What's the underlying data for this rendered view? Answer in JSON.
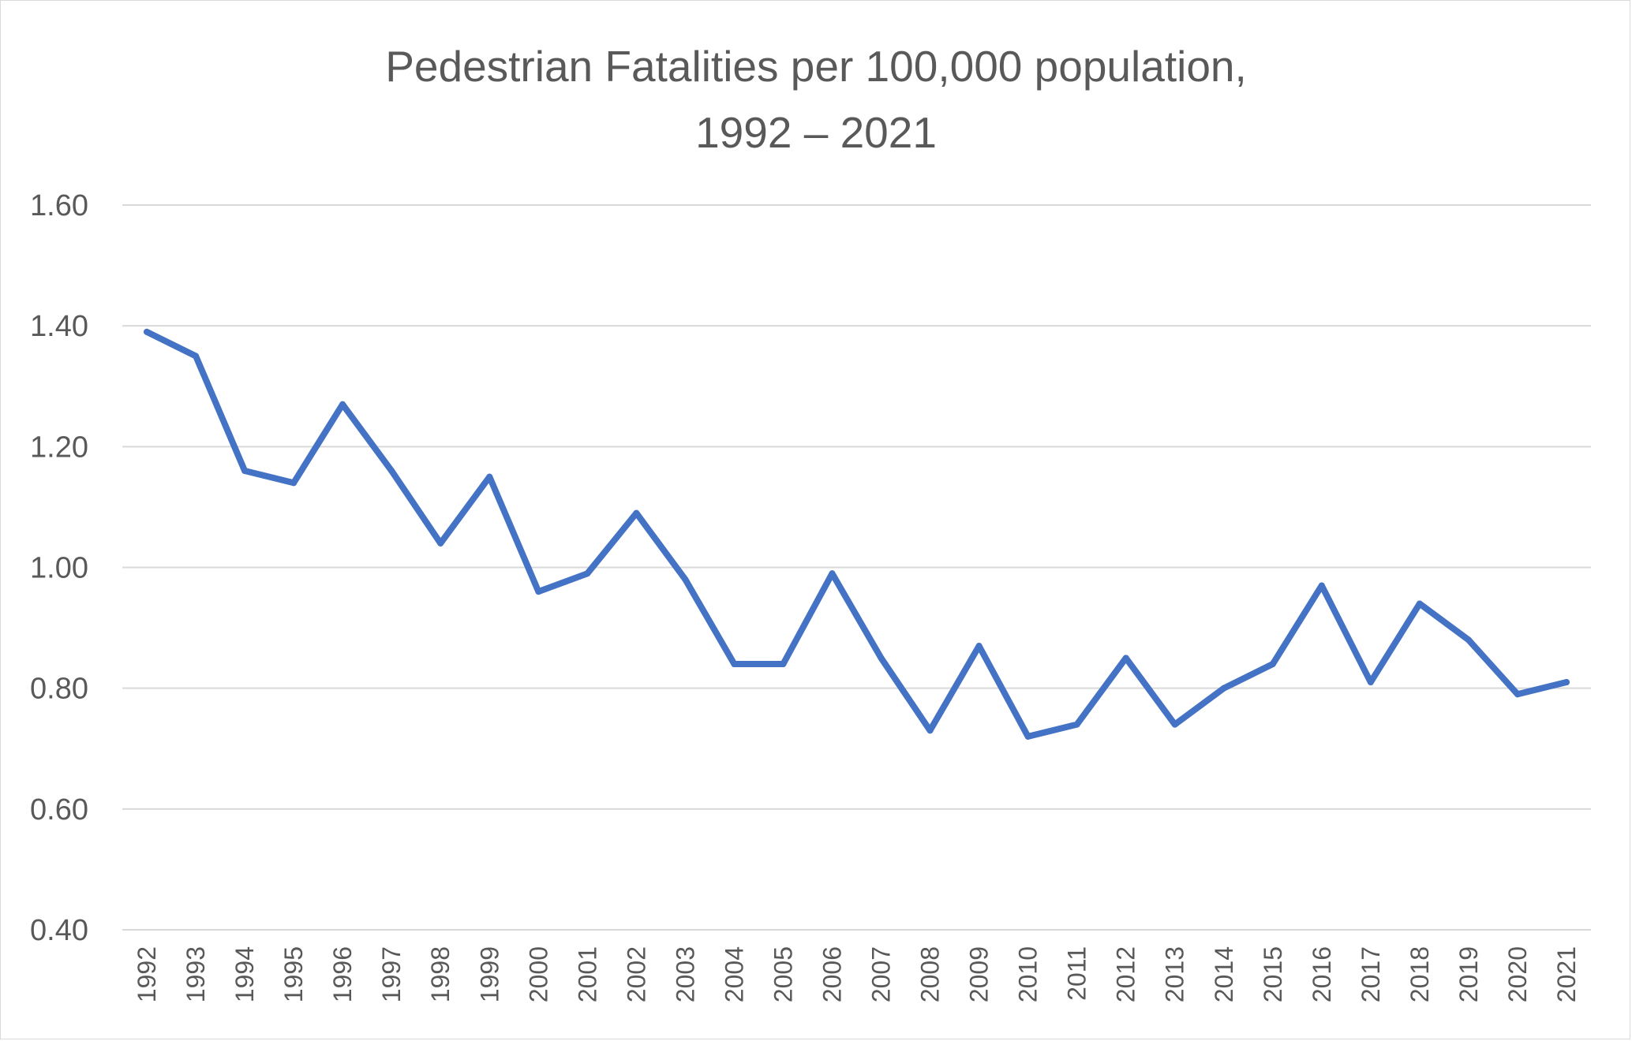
{
  "chart_data": {
    "type": "line",
    "title_lines": [
      "Pedestrian Fatalities per 100,000 population,",
      "1992 – 2021"
    ],
    "xlabel": "",
    "ylabel": "",
    "ylim": [
      0.4,
      1.6
    ],
    "yticks": [
      "0.40",
      "0.60",
      "0.80",
      "1.00",
      "1.20",
      "1.40",
      "1.60"
    ],
    "grid": true,
    "legend": "none",
    "line_color": "#4472C4",
    "gridline_color": "#d9d9d9",
    "x": [
      "1992",
      "1993",
      "1994",
      "1995",
      "1996",
      "1997",
      "1998",
      "1999",
      "2000",
      "2001",
      "2002",
      "2003",
      "2004",
      "2005",
      "2006",
      "2007",
      "2008",
      "2009",
      "2010",
      "2011",
      "2012",
      "2013",
      "2014",
      "2015",
      "2016",
      "2017",
      "2018",
      "2019",
      "2020",
      "2021"
    ],
    "series": [
      {
        "values": [
          1.39,
          1.35,
          1.16,
          1.14,
          1.27,
          1.16,
          1.04,
          1.15,
          0.96,
          0.99,
          1.09,
          0.98,
          0.84,
          0.84,
          0.99,
          0.85,
          0.73,
          0.87,
          0.72,
          0.74,
          0.85,
          0.74,
          0.8,
          0.84,
          0.97,
          0.81,
          0.94,
          0.88,
          0.79,
          0.81
        ]
      }
    ]
  }
}
